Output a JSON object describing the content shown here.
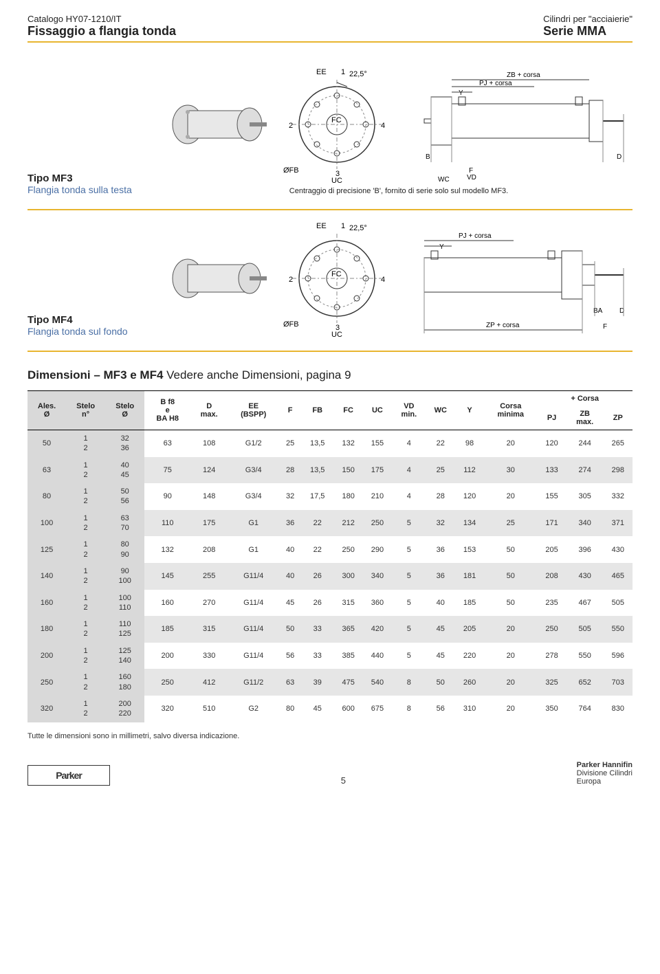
{
  "header": {
    "catalog": "Catalogo HY07-1210/IT",
    "page_title": "Fissaggio a flangia tonda",
    "product_line1": "Cilindri per \"acciaierie\"",
    "product_line2": "Serie MMA"
  },
  "colors": {
    "accent": "#e8b52f",
    "blue": "#4a6fa5",
    "shade_light": "#e6e6e6",
    "shade_dark": "#d9d9d9"
  },
  "type_mf3": {
    "title": "Tipo MF3",
    "subtitle": "Flangia tonda sulla testa",
    "note": "Centraggio di precisione 'B', fornito di serie solo sul modello MF3.",
    "labels": {
      "EE": "EE",
      "angle": "22,5°",
      "FC": "FC",
      "OFB": "ØFB",
      "UC": "UC",
      "WC": "WC",
      "F": "F",
      "VD": "VD",
      "Y": "Y",
      "B": "B",
      "D": "D",
      "ZB": "ZB + corsa",
      "PJ": "PJ + corsa",
      "n1": "1",
      "n2": "2",
      "n3": "3",
      "n4": "4"
    }
  },
  "type_mf4": {
    "title": "Tipo MF4",
    "subtitle": "Flangia tonda sul fondo",
    "labels": {
      "EE": "EE",
      "angle": "22,5°",
      "FC": "FC",
      "OFB": "ØFB",
      "UC": "UC",
      "F": "F",
      "Y": "Y",
      "BA": "BA",
      "D": "D",
      "PJ": "PJ + corsa",
      "ZP": "ZP + corsa",
      "n1": "1",
      "n2": "2",
      "n3": "3",
      "n4": "4"
    }
  },
  "dimensions": {
    "title_bold": "Dimensioni – MF3 e MF4",
    "title_rest": " Vedere anche Dimensioni, pagina 9",
    "headers": {
      "ales": "Ales.\nØ",
      "stelo_n": "Stelo\nn°",
      "stelo_o": "Stelo\nØ",
      "b": "B f8\ne\nBA H8",
      "d": "D\nmax.",
      "ee": "EE\n(BSPP)",
      "f": "F",
      "fb": "FB",
      "fc": "FC",
      "uc": "UC",
      "vd": "VD\nmin.",
      "wc": "WC",
      "y": "Y",
      "corsa": "Corsa\nminima",
      "corsa_group": "+ Corsa",
      "pj": "PJ",
      "zb": "ZB\nmax.",
      "zp": "ZP"
    },
    "rows": [
      {
        "ales": "50",
        "stelo_n": "1\n2",
        "stelo_o": "32\n36",
        "b": "63",
        "d": "108",
        "ee": "G1/2",
        "f": "25",
        "fb": "13,5",
        "fc": "132",
        "uc": "155",
        "vd": "4",
        "wc": "22",
        "y": "98",
        "corsa": "20",
        "pj": "120",
        "zb": "244",
        "zp": "265"
      },
      {
        "ales": "63",
        "stelo_n": "1\n2",
        "stelo_o": "40\n45",
        "b": "75",
        "d": "124",
        "ee": "G3/4",
        "f": "28",
        "fb": "13,5",
        "fc": "150",
        "uc": "175",
        "vd": "4",
        "wc": "25",
        "y": "112",
        "corsa": "30",
        "pj": "133",
        "zb": "274",
        "zp": "298"
      },
      {
        "ales": "80",
        "stelo_n": "1\n2",
        "stelo_o": "50\n56",
        "b": "90",
        "d": "148",
        "ee": "G3/4",
        "f": "32",
        "fb": "17,5",
        "fc": "180",
        "uc": "210",
        "vd": "4",
        "wc": "28",
        "y": "120",
        "corsa": "20",
        "pj": "155",
        "zb": "305",
        "zp": "332"
      },
      {
        "ales": "100",
        "stelo_n": "1\n2",
        "stelo_o": "63\n70",
        "b": "110",
        "d": "175",
        "ee": "G1",
        "f": "36",
        "fb": "22",
        "fc": "212",
        "uc": "250",
        "vd": "5",
        "wc": "32",
        "y": "134",
        "corsa": "25",
        "pj": "171",
        "zb": "340",
        "zp": "371"
      },
      {
        "ales": "125",
        "stelo_n": "1\n2",
        "stelo_o": "80\n90",
        "b": "132",
        "d": "208",
        "ee": "G1",
        "f": "40",
        "fb": "22",
        "fc": "250",
        "uc": "290",
        "vd": "5",
        "wc": "36",
        "y": "153",
        "corsa": "50",
        "pj": "205",
        "zb": "396",
        "zp": "430"
      },
      {
        "ales": "140",
        "stelo_n": "1\n2",
        "stelo_o": "90\n100",
        "b": "145",
        "d": "255",
        "ee": "G11/4",
        "f": "40",
        "fb": "26",
        "fc": "300",
        "uc": "340",
        "vd": "5",
        "wc": "36",
        "y": "181",
        "corsa": "50",
        "pj": "208",
        "zb": "430",
        "zp": "465"
      },
      {
        "ales": "160",
        "stelo_n": "1\n2",
        "stelo_o": "100\n110",
        "b": "160",
        "d": "270",
        "ee": "G11/4",
        "f": "45",
        "fb": "26",
        "fc": "315",
        "uc": "360",
        "vd": "5",
        "wc": "40",
        "y": "185",
        "corsa": "50",
        "pj": "235",
        "zb": "467",
        "zp": "505"
      },
      {
        "ales": "180",
        "stelo_n": "1\n2",
        "stelo_o": "110\n125",
        "b": "185",
        "d": "315",
        "ee": "G11/4",
        "f": "50",
        "fb": "33",
        "fc": "365",
        "uc": "420",
        "vd": "5",
        "wc": "45",
        "y": "205",
        "corsa": "20",
        "pj": "250",
        "zb": "505",
        "zp": "550"
      },
      {
        "ales": "200",
        "stelo_n": "1\n2",
        "stelo_o": "125\n140",
        "b": "200",
        "d": "330",
        "ee": "G11/4",
        "f": "56",
        "fb": "33",
        "fc": "385",
        "uc": "440",
        "vd": "5",
        "wc": "45",
        "y": "220",
        "corsa": "20",
        "pj": "278",
        "zb": "550",
        "zp": "596"
      },
      {
        "ales": "250",
        "stelo_n": "1\n2",
        "stelo_o": "160\n180",
        "b": "250",
        "d": "412",
        "ee": "G11/2",
        "f": "63",
        "fb": "39",
        "fc": "475",
        "uc": "540",
        "vd": "8",
        "wc": "50",
        "y": "260",
        "corsa": "20",
        "pj": "325",
        "zb": "652",
        "zp": "703"
      },
      {
        "ales": "320",
        "stelo_n": "1\n2",
        "stelo_o": "200\n220",
        "b": "320",
        "d": "510",
        "ee": "G2",
        "f": "80",
        "fb": "45",
        "fc": "600",
        "uc": "675",
        "vd": "8",
        "wc": "56",
        "y": "310",
        "corsa": "20",
        "pj": "350",
        "zb": "764",
        "zp": "830"
      }
    ]
  },
  "footnote": "Tutte le dimensioni sono in millimetri, salvo diversa indicazione.",
  "footer": {
    "logo_text": "Parker",
    "page_no": "5",
    "company": "Parker Hannifin",
    "div": "Divisione Cilindri",
    "region": "Europa"
  }
}
